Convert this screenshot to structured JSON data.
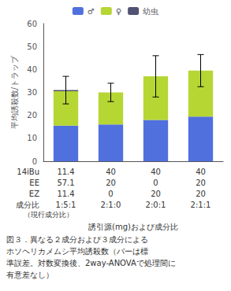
{
  "chart_data": {
    "type": "bar",
    "stacked": true,
    "categories": [
      null,
      null,
      null,
      null
    ],
    "series": [
      {
        "name": "♂",
        "values": [
          15.5,
          16.0,
          18.0,
          19.5
        ]
      },
      {
        "name": "♀",
        "values": [
          15.0,
          14.0,
          19.0,
          20.0
        ]
      },
      {
        "name": "幼虫",
        "values": [
          0.5,
          0.0,
          0.0,
          0.0
        ]
      }
    ],
    "error_centers": [
      31.0,
      30.0,
      37.0,
      39.5
    ],
    "errors": [
      6.0,
      4.0,
      9.0,
      7.0
    ],
    "ylabel": "平均誘殺数/トラップ",
    "xlabel": "誘引源(mg)および成分比",
    "ylim": [
      0,
      60
    ],
    "yticks": [
      0,
      10,
      20,
      30,
      40,
      50,
      60
    ],
    "grid": false,
    "legend": "top",
    "table": [
      {
        "label": "14iBu",
        "values": [
          "11.4",
          "40",
          "40",
          "40"
        ]
      },
      {
        "label": "EE",
        "values": [
          "57.1",
          "20",
          "0",
          "20"
        ]
      },
      {
        "label": "EZ",
        "values": [
          "11.4",
          "0",
          "20",
          "20"
        ]
      },
      {
        "label": "成分比",
        "values": [
          "1:5:1",
          "2:1:0",
          "2:0:1",
          "2:1:1"
        ]
      }
    ],
    "table_note": "（現行成分比）",
    "caption": [
      "図３．異なる２成分および３成分による",
      "ホソヘリカメムシ平均誘殺数（バーは標",
      "準誤差。対数変換後、2way-ANOVAで処理間に",
      "有意差なし）"
    ]
  }
}
